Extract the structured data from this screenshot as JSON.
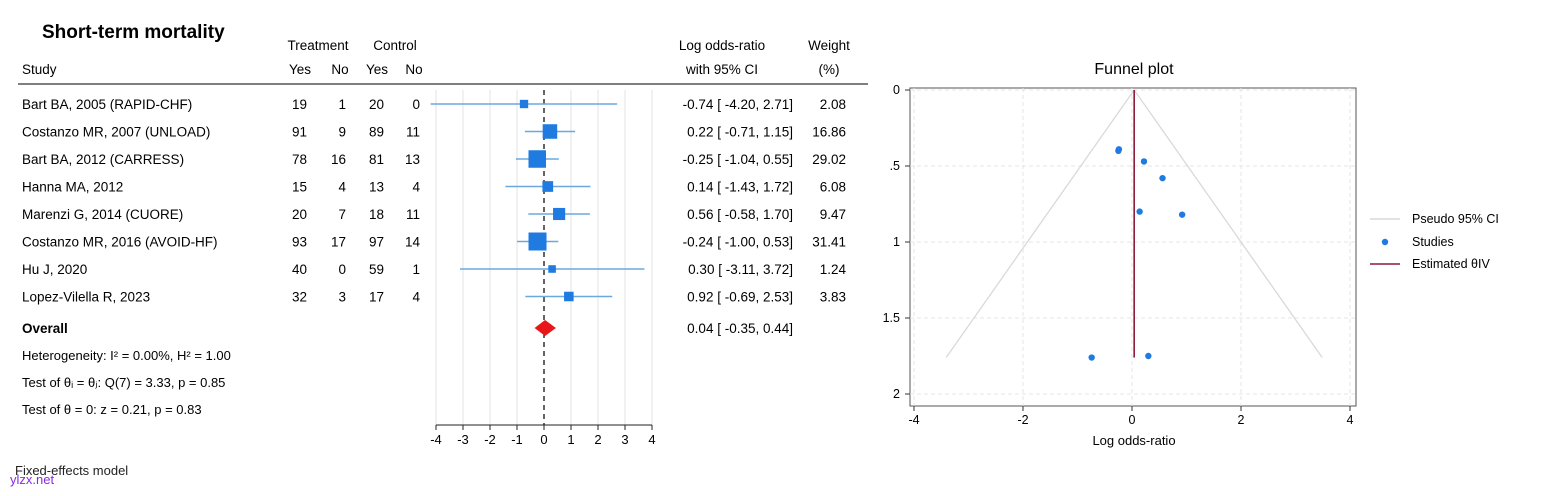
{
  "chart_data": [
    {
      "type": "forest",
      "title": "Short-term mortality",
      "headers": {
        "study": "Study",
        "treatment_group": "Treatment",
        "control_group": "Control",
        "yes": "Yes",
        "no": "No",
        "effect_line1": "Log odds-ratio",
        "effect_line2": "with 95% CI",
        "weight_line1": "Weight",
        "weight_line2": "(%)"
      },
      "studies": [
        {
          "name": "Bart BA, 2005 (RAPID-CHF)",
          "t_yes": "19",
          "t_no": "1",
          "c_yes": "20",
          "c_no": "0",
          "est": -0.74,
          "lo": -4.2,
          "hi": 2.71,
          "ci_text": "-0.74 [ -4.20,  2.71]",
          "weight": 2.08,
          "weight_text": "2.08"
        },
        {
          "name": "Costanzo MR, 2007 (UNLOAD)",
          "t_yes": "91",
          "t_no": "9",
          "c_yes": "89",
          "c_no": "11",
          "est": 0.22,
          "lo": -0.71,
          "hi": 1.15,
          "ci_text": "0.22 [ -0.71,  1.15]",
          "weight": 16.86,
          "weight_text": "16.86"
        },
        {
          "name": "Bart BA, 2012 (CARRESS)",
          "t_yes": "78",
          "t_no": "16",
          "c_yes": "81",
          "c_no": "13",
          "est": -0.25,
          "lo": -1.04,
          "hi": 0.55,
          "ci_text": "-0.25 [ -1.04,  0.55]",
          "weight": 29.02,
          "weight_text": "29.02"
        },
        {
          "name": "Hanna MA, 2012",
          "t_yes": "15",
          "t_no": "4",
          "c_yes": "13",
          "c_no": "4",
          "est": 0.14,
          "lo": -1.43,
          "hi": 1.72,
          "ci_text": "0.14 [ -1.43,  1.72]",
          "weight": 6.08,
          "weight_text": "6.08"
        },
        {
          "name": "Marenzi G, 2014 (CUORE)",
          "t_yes": "20",
          "t_no": "7",
          "c_yes": "18",
          "c_no": "11",
          "est": 0.56,
          "lo": -0.58,
          "hi": 1.7,
          "ci_text": "0.56 [ -0.58,  1.70]",
          "weight": 9.47,
          "weight_text": "9.47"
        },
        {
          "name": "Costanzo MR, 2016 (AVOID-HF)",
          "t_yes": "93",
          "t_no": "17",
          "c_yes": "97",
          "c_no": "14",
          "est": -0.24,
          "lo": -1.0,
          "hi": 0.53,
          "ci_text": "-0.24 [ -1.00,  0.53]",
          "weight": 31.41,
          "weight_text": "31.41"
        },
        {
          "name": "Hu J, 2020",
          "t_yes": "40",
          "t_no": "0",
          "c_yes": "59",
          "c_no": "1",
          "est": 0.3,
          "lo": -3.11,
          "hi": 3.72,
          "ci_text": "0.30 [ -3.11,  3.72]",
          "weight": 1.24,
          "weight_text": "1.24"
        },
        {
          "name": "Lopez-Vilella R, 2023",
          "t_yes": "32",
          "t_no": "3",
          "c_yes": "17",
          "c_no": "4",
          "est": 0.92,
          "lo": -0.69,
          "hi": 2.53,
          "ci_text": "0.92 [ -0.69,  2.53]",
          "weight": 3.83,
          "weight_text": "3.83"
        }
      ],
      "overall": {
        "label": "Overall",
        "est": 0.04,
        "lo": -0.35,
        "hi": 0.44,
        "ci_text": "0.04 [ -0.35,  0.44]"
      },
      "heterogeneity": "Heterogeneity: I² = 0.00%, H² = 1.00",
      "test_homogeneity": "Test of θᵢ = θⱼ: Q(7) = 3.33, p = 0.85",
      "test_zero": "Test of θ = 0: z = 0.21, p = 0.83",
      "model_note": "Fixed-effects model",
      "x_range": [
        -4,
        4
      ],
      "x_ticks": [
        -4,
        -3,
        -2,
        -1,
        0,
        1,
        2,
        3,
        4
      ],
      "colors": {
        "ci": "#6aa8dd",
        "marker": "#1f7be0",
        "overall": "#e8161b"
      }
    },
    {
      "type": "scatter",
      "title": "Funnel plot",
      "xlabel": "Log odds-ratio",
      "ylabel": "",
      "x_range": [
        -4,
        4
      ],
      "y_range": [
        0,
        2
      ],
      "y_inverted": true,
      "x_ticks": [
        -4,
        -2,
        0,
        2,
        4
      ],
      "y_ticks": [
        0,
        0.5,
        1,
        1.5,
        2
      ],
      "y_tick_labels": [
        "0",
        ".5",
        "1",
        "1.5",
        "2"
      ],
      "estimated_theta": 0.04,
      "pseudo_ci_se_max": 1.76,
      "points": [
        {
          "x": -0.74,
          "y": 1.76
        },
        {
          "x": 0.22,
          "y": 0.47
        },
        {
          "x": -0.25,
          "y": 0.4
        },
        {
          "x": 0.14,
          "y": 0.8
        },
        {
          "x": 0.56,
          "y": 0.58
        },
        {
          "x": -0.24,
          "y": 0.39
        },
        {
          "x": 0.3,
          "y": 1.75
        },
        {
          "x": 0.92,
          "y": 0.82
        }
      ],
      "legend": [
        {
          "label": "Pseudo 95% CI",
          "kind": "line",
          "color": "#d9d9d9"
        },
        {
          "label": "Studies",
          "kind": "dot",
          "color": "#1f7be0"
        },
        {
          "label": "Estimated θIV",
          "kind": "line",
          "color": "#8b1a3a"
        }
      ]
    }
  ],
  "watermark": "ylzx.net"
}
